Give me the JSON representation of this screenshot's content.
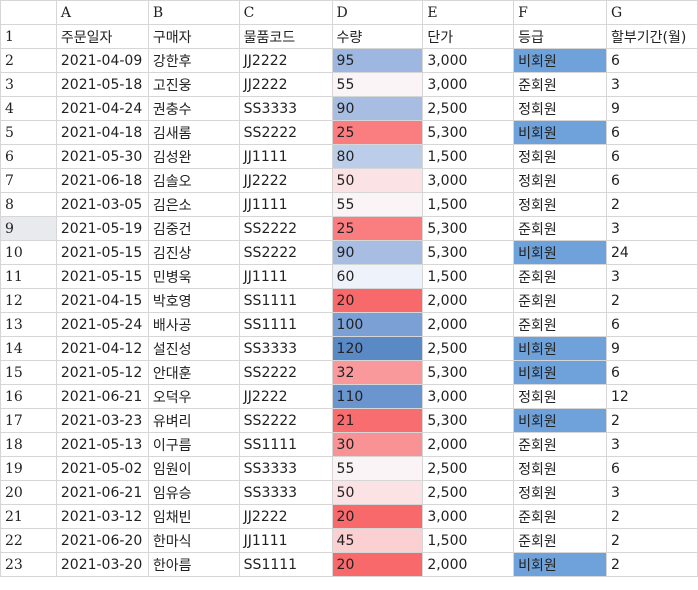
{
  "columns": [
    "A",
    "B",
    "C",
    "D",
    "E",
    "F",
    "G"
  ],
  "header_row": {
    "num": "1",
    "cells": [
      "주문일자",
      "구매자",
      "물품코드",
      "수량",
      "단가",
      "등급",
      "할부기간(월)"
    ]
  },
  "rows": [
    {
      "num": "2",
      "date": "2021-04-09",
      "buyer": "강한후",
      "code": "JJ2222",
      "qty": "95",
      "qty_color": "#9eb7e0",
      "price": "3,000",
      "grade": "비회원",
      "grade_hl": true,
      "months": "6"
    },
    {
      "num": "3",
      "date": "2021-05-18",
      "buyer": "고진웅",
      "code": "JJ2222",
      "qty": "55",
      "qty_color": "#fbf4f6",
      "price": "3,000",
      "grade": "준회원",
      "grade_hl": false,
      "months": "3"
    },
    {
      "num": "4",
      "date": "2021-04-24",
      "buyer": "권충수",
      "code": "SS3333",
      "qty": "90",
      "qty_color": "#a7bee2",
      "price": "2,500",
      "grade": "정회원",
      "grade_hl": false,
      "months": "9"
    },
    {
      "num": "5",
      "date": "2021-04-18",
      "buyer": "김새롬",
      "code": "SS2222",
      "qty": "25",
      "qty_color": "#fa7d80",
      "price": "5,300",
      "grade": "비회원",
      "grade_hl": true,
      "months": "6"
    },
    {
      "num": "6",
      "date": "2021-05-30",
      "buyer": "김성완",
      "code": "JJ1111",
      "qty": "80",
      "qty_color": "#bccde9",
      "price": "1,500",
      "grade": "정회원",
      "grade_hl": false,
      "months": "6"
    },
    {
      "num": "7",
      "date": "2021-06-18",
      "buyer": "김솔오",
      "code": "JJ2222",
      "qty": "50",
      "qty_color": "#fbe3e5",
      "price": "3,000",
      "grade": "정회원",
      "grade_hl": false,
      "months": "6"
    },
    {
      "num": "8",
      "date": "2021-03-05",
      "buyer": "김은소",
      "code": "JJ1111",
      "qty": "55",
      "qty_color": "#fbf4f6",
      "price": "1,500",
      "grade": "정회원",
      "grade_hl": false,
      "months": "2"
    },
    {
      "num": "9",
      "date": "2021-05-19",
      "buyer": "김중건",
      "code": "SS2222",
      "qty": "25",
      "qty_color": "#fa7d80",
      "price": "5,300",
      "grade": "준회원",
      "grade_hl": false,
      "months": "3",
      "selected": true
    },
    {
      "num": "10",
      "date": "2021-05-15",
      "buyer": "김진상",
      "code": "SS2222",
      "qty": "90",
      "qty_color": "#a7bee2",
      "price": "5,300",
      "grade": "비회원",
      "grade_hl": true,
      "months": "24"
    },
    {
      "num": "11",
      "date": "2021-05-15",
      "buyer": "민병욱",
      "code": "JJ1111",
      "qty": "60",
      "qty_color": "#eef2fa",
      "price": "1,500",
      "grade": "준회원",
      "grade_hl": false,
      "months": "3"
    },
    {
      "num": "12",
      "date": "2021-04-15",
      "buyer": "박호영",
      "code": "SS1111",
      "qty": "20",
      "qty_color": "#f8696b",
      "price": "2,000",
      "grade": "준회원",
      "grade_hl": false,
      "months": "2"
    },
    {
      "num": "13",
      "date": "2021-05-24",
      "buyer": "배사공",
      "code": "SS1111",
      "qty": "100",
      "qty_color": "#7aa0d6",
      "price": "2,000",
      "grade": "준회원",
      "grade_hl": false,
      "months": "6"
    },
    {
      "num": "14",
      "date": "2021-04-12",
      "buyer": "설진성",
      "code": "SS3333",
      "qty": "120",
      "qty_color": "#5a8ac6",
      "price": "2,500",
      "grade": "비회원",
      "grade_hl": true,
      "months": "9"
    },
    {
      "num": "15",
      "date": "2021-05-12",
      "buyer": "안대훈",
      "code": "SS2222",
      "qty": "32",
      "qty_color": "#f9999c",
      "price": "5,300",
      "grade": "비회원",
      "grade_hl": true,
      "months": "6"
    },
    {
      "num": "16",
      "date": "2021-06-21",
      "buyer": "오덕우",
      "code": "JJ2222",
      "qty": "110",
      "qty_color": "#6a95cf",
      "price": "3,000",
      "grade": "정회원",
      "grade_hl": false,
      "months": "12"
    },
    {
      "num": "17",
      "date": "2021-03-23",
      "buyer": "유벼리",
      "code": "SS2222",
      "qty": "21",
      "qty_color": "#f86d70",
      "price": "5,300",
      "grade": "비회원",
      "grade_hl": true,
      "months": "2"
    },
    {
      "num": "18",
      "date": "2021-05-13",
      "buyer": "이구름",
      "code": "SS1111",
      "qty": "30",
      "qty_color": "#f99295",
      "price": "2,000",
      "grade": "준회원",
      "grade_hl": false,
      "months": "3"
    },
    {
      "num": "19",
      "date": "2021-05-02",
      "buyer": "임원이",
      "code": "SS3333",
      "qty": "55",
      "qty_color": "#fbf4f6",
      "price": "2,500",
      "grade": "정회원",
      "grade_hl": false,
      "months": "6"
    },
    {
      "num": "20",
      "date": "2021-06-21",
      "buyer": "임유승",
      "code": "SS3333",
      "qty": "50",
      "qty_color": "#fbe3e5",
      "price": "2,500",
      "grade": "정회원",
      "grade_hl": false,
      "months": "3"
    },
    {
      "num": "21",
      "date": "2021-03-12",
      "buyer": "임채빈",
      "code": "JJ2222",
      "qty": "20",
      "qty_color": "#f8696b",
      "price": "3,000",
      "grade": "준회원",
      "grade_hl": false,
      "months": "2"
    },
    {
      "num": "22",
      "date": "2021-06-20",
      "buyer": "한마식",
      "code": "JJ1111",
      "qty": "45",
      "qty_color": "#fad0d2",
      "price": "1,500",
      "grade": "준회원",
      "grade_hl": false,
      "months": "2"
    },
    {
      "num": "23",
      "date": "2021-03-20",
      "buyer": "한아름",
      "code": "SS1111",
      "qty": "20",
      "qty_color": "#f8696b",
      "price": "2,000",
      "grade": "비회원",
      "grade_hl": true,
      "months": "2"
    }
  ],
  "colors": {
    "grade_highlight": "#6fa2db",
    "grid": "#d6d6d6",
    "selected_row_header": "#e8eaed"
  }
}
